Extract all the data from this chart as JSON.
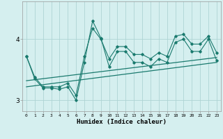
{
  "xlabel": "Humidex (Indice chaleur)",
  "background_color": "#d5efef",
  "grid_color": "#aed4d4",
  "line_color": "#1a7a6e",
  "xlim": [
    -0.5,
    23.5
  ],
  "ylim": [
    2.82,
    4.62
  ],
  "yticks": [
    3,
    4
  ],
  "xticks": [
    0,
    1,
    2,
    3,
    4,
    5,
    6,
    7,
    8,
    9,
    10,
    11,
    12,
    13,
    14,
    15,
    16,
    17,
    18,
    19,
    20,
    21,
    22,
    23
  ],
  "zigzag1_x": [
    0,
    1,
    2,
    3,
    4,
    5,
    6,
    7,
    8,
    9,
    10,
    11,
    12,
    13,
    14,
    15,
    16,
    17,
    18,
    19,
    20,
    21,
    22,
    23
  ],
  "zigzag1_y": [
    3.72,
    3.35,
    3.2,
    3.2,
    3.18,
    3.22,
    3.0,
    3.62,
    4.3,
    4.02,
    3.55,
    3.8,
    3.8,
    3.62,
    3.62,
    3.55,
    3.68,
    3.62,
    3.95,
    4.0,
    3.8,
    3.8,
    4.0,
    3.65
  ],
  "zigzag2_x": [
    0,
    1,
    2,
    3,
    4,
    5,
    6,
    7,
    8,
    9,
    10,
    11,
    12,
    13,
    14,
    15,
    16,
    17,
    18,
    19,
    20,
    21,
    22,
    23
  ],
  "zigzag2_y": [
    3.72,
    3.38,
    3.22,
    3.22,
    3.22,
    3.28,
    3.08,
    3.72,
    4.18,
    4.0,
    3.68,
    3.88,
    3.88,
    3.75,
    3.75,
    3.68,
    3.78,
    3.72,
    4.05,
    4.08,
    3.92,
    3.92,
    4.05,
    3.78
  ],
  "line3_x": [
    0,
    23
  ],
  "line3_y": [
    3.32,
    3.7
  ],
  "line4_x": [
    0,
    23
  ],
  "line4_y": [
    3.22,
    3.62
  ]
}
